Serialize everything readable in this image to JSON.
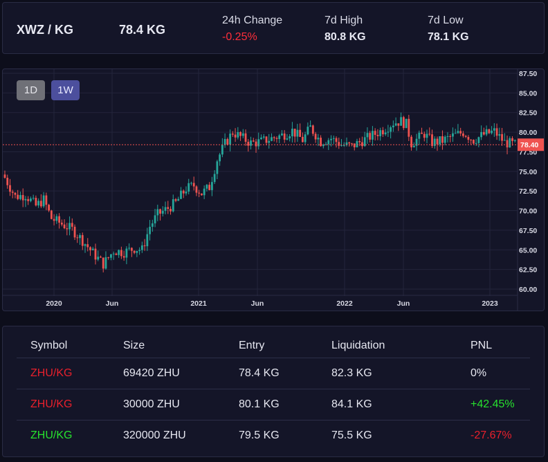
{
  "ticker": {
    "pair": "XWZ / KG",
    "price": "78.4 KG",
    "change_label": "24h Change",
    "change_value": "-0.25%",
    "high_label": "7d High",
    "high_value": "80.8 KG",
    "low_label": "7d Low",
    "low_value": "78.1 KG"
  },
  "chart": {
    "timeframes": [
      "1D",
      "1W"
    ],
    "active_timeframe": "1W",
    "current_price_label": "78.40",
    "colors": {
      "up": "#26a69a",
      "down": "#ef5350",
      "price_line": "#ef5350",
      "background": "#141528",
      "grid": "#23253b"
    }
  },
  "chart_data": {
    "type": "candlestick",
    "x_ticks": [
      "2020",
      "Jun",
      "2021",
      "Jun",
      "2022",
      "Jun",
      "2023"
    ],
    "y_ticks": [
      "87.50",
      "85.00",
      "82.50",
      "80.00",
      "77.50",
      "75.00",
      "72.50",
      "70.00",
      "67.50",
      "65.00",
      "62.50",
      "60.00"
    ],
    "ylim": [
      60,
      87.5
    ],
    "current_price": 78.4,
    "grid": true,
    "close_path": [
      {
        "t": 0,
        "v": 74.2
      },
      {
        "t": 4,
        "v": 71.8
      },
      {
        "t": 8,
        "v": 72.0
      },
      {
        "t": 12,
        "v": 70.6
      },
      {
        "t": 15,
        "v": 71.4
      },
      {
        "t": 18,
        "v": 69.0
      },
      {
        "t": 22,
        "v": 68.3
      },
      {
        "t": 26,
        "v": 67.6
      },
      {
        "t": 30,
        "v": 66.2
      },
      {
        "t": 34,
        "v": 64.6
      },
      {
        "t": 38,
        "v": 63.2
      },
      {
        "t": 40,
        "v": 64.0
      },
      {
        "t": 42,
        "v": 64.9
      },
      {
        "t": 46,
        "v": 64.7
      },
      {
        "t": 50,
        "v": 65.2
      },
      {
        "t": 53,
        "v": 65.0
      },
      {
        "t": 56,
        "v": 68.0
      },
      {
        "t": 59,
        "v": 69.5
      },
      {
        "t": 63,
        "v": 70.3
      },
      {
        "t": 66,
        "v": 71.0
      },
      {
        "t": 70,
        "v": 72.8
      },
      {
        "t": 73,
        "v": 73.2
      },
      {
        "t": 76,
        "v": 72.2
      },
      {
        "t": 79,
        "v": 73.0
      },
      {
        "t": 82,
        "v": 76.5
      },
      {
        "t": 85,
        "v": 78.5
      },
      {
        "t": 88,
        "v": 80.0
      },
      {
        "t": 91,
        "v": 79.4
      },
      {
        "t": 95,
        "v": 78.6
      },
      {
        "t": 99,
        "v": 78.8
      },
      {
        "t": 103,
        "v": 79.2
      },
      {
        "t": 107,
        "v": 79.6
      },
      {
        "t": 111,
        "v": 80.2
      },
      {
        "t": 115,
        "v": 79.0
      },
      {
        "t": 118,
        "v": 80.6
      },
      {
        "t": 122,
        "v": 78.8
      },
      {
        "t": 126,
        "v": 79.2
      },
      {
        "t": 130,
        "v": 78.4
      },
      {
        "t": 134,
        "v": 78.2
      },
      {
        "t": 138,
        "v": 78.9
      },
      {
        "t": 142,
        "v": 79.6
      },
      {
        "t": 146,
        "v": 80.3
      },
      {
        "t": 150,
        "v": 81.2
      },
      {
        "t": 153,
        "v": 81.4
      },
      {
        "t": 155,
        "v": 81.0
      },
      {
        "t": 157,
        "v": 78.6
      },
      {
        "t": 160,
        "v": 79.3
      },
      {
        "t": 162,
        "v": 79.8
      },
      {
        "t": 165,
        "v": 78.7
      },
      {
        "t": 169,
        "v": 78.9
      },
      {
        "t": 173,
        "v": 79.5
      },
      {
        "t": 177,
        "v": 80.0
      },
      {
        "t": 181,
        "v": 79.0
      },
      {
        "t": 185,
        "v": 79.7
      },
      {
        "t": 189,
        "v": 80.1
      },
      {
        "t": 193,
        "v": 78.7
      },
      {
        "t": 197,
        "v": 78.4
      }
    ]
  },
  "positions": {
    "headers": [
      "Symbol",
      "Size",
      "Entry",
      "Liquidation",
      "PNL"
    ],
    "rows": [
      {
        "symbol": "ZHU/KG",
        "symbol_color": "red",
        "size": "69420 ZHU",
        "entry": "78.4 KG",
        "liquidation": "82.3 KG",
        "pnl": "0%",
        "pnl_color": "white"
      },
      {
        "symbol": "ZHU/KG",
        "symbol_color": "red",
        "size": "30000 ZHU",
        "entry": "80.1 KG",
        "liquidation": "84.1 KG",
        "pnl": "+42.45%",
        "pnl_color": "green"
      },
      {
        "symbol": "ZHU/KG",
        "symbol_color": "green",
        "size": "320000 ZHU",
        "entry": "79.5 KG",
        "liquidation": "75.5 KG",
        "pnl": "-27.67%",
        "pnl_color": "red"
      }
    ]
  }
}
